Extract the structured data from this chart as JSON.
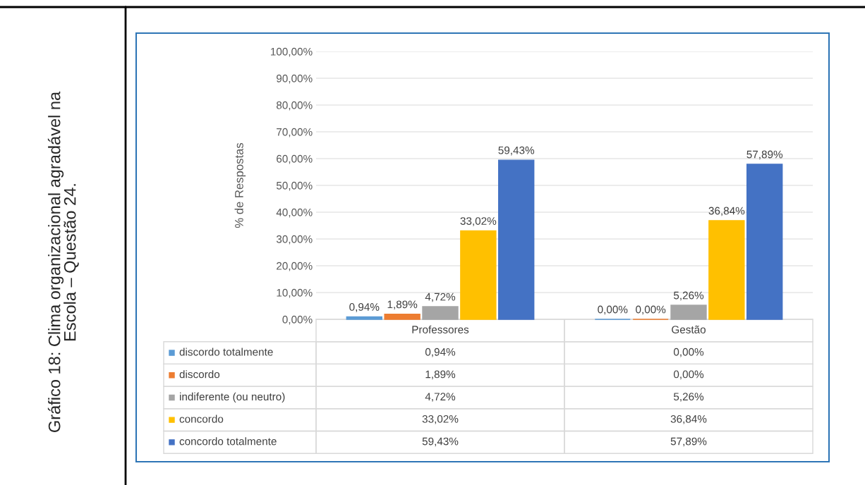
{
  "chart_data": {
    "type": "bar",
    "title": "Gráfico 18: Clima organizacional agradável na\nEscola – Questão 24.",
    "ylabel": "% de Respostas",
    "legend": "bottom left",
    "categories": [
      "Professores",
      "Gestão"
    ],
    "series": [
      {
        "name": "discordo totalmente",
        "color": "#5b9bd5",
        "values": [
          0.94,
          0.0
        ],
        "value_labels": [
          "0,94%",
          "0,00%"
        ]
      },
      {
        "name": "discordo",
        "color": "#ed7d31",
        "values": [
          1.89,
          0.0
        ],
        "value_labels": [
          "1,89%",
          "0,00%"
        ]
      },
      {
        "name": "indiferente (ou neutro)",
        "color": "#a5a5a5",
        "values": [
          4.72,
          5.26
        ],
        "value_labels": [
          "4,72%",
          "5,26%"
        ]
      },
      {
        "name": "concordo",
        "color": "#ffc000",
        "values": [
          33.02,
          36.84
        ],
        "value_labels": [
          "33,02%",
          "36,84%"
        ]
      },
      {
        "name": "concordo totalmente",
        "color": "#4472c4",
        "values": [
          59.43,
          57.89
        ],
        "value_labels": [
          "59,43%",
          "57,89%"
        ]
      }
    ],
    "ylim": [
      0,
      100
    ],
    "yticks": [
      {
        "value": 0,
        "label": "0,00%"
      },
      {
        "value": 10,
        "label": "10,00%"
      },
      {
        "value": 20,
        "label": "20,00%"
      },
      {
        "value": 30,
        "label": "30,00%"
      },
      {
        "value": 40,
        "label": "40,00%"
      },
      {
        "value": 50,
        "label": "50,00%"
      },
      {
        "value": 60,
        "label": "60,00%"
      },
      {
        "value": 70,
        "label": "70,00%"
      },
      {
        "value": 80,
        "label": "80,00%"
      },
      {
        "value": 90,
        "label": "90,00%"
      },
      {
        "value": 100,
        "label": "100,00%"
      }
    ],
    "grid": "y"
  }
}
